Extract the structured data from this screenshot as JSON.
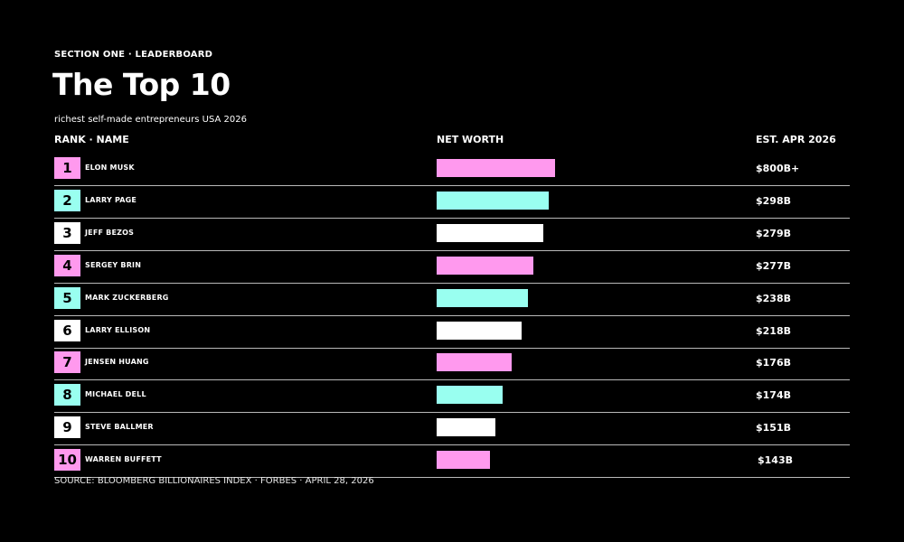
{
  "kicker": "SECTION ONE · LEADERBOARD",
  "title": "The Top 10",
  "subtitle": "richest self-made entrepreneurs USA 2026",
  "columns": {
    "rank_name": "RANK · NAME",
    "net_worth": "NET WORTH",
    "est": "EST. APR 2026"
  },
  "source": "SOURCE: BLOOMBERG BILLIONAIRES INDEX · FORBES · APRIL 28, 2026",
  "colors": {
    "background": "#000000",
    "pink": "#ff99ee",
    "cyan": "#99fff0",
    "white": "#ffffff",
    "divider": "#b9b9b9"
  },
  "chart_data": {
    "type": "bar",
    "title": "The Top 10",
    "subtitle": "richest self-made entrepreneurs USA 2026",
    "orientation": "horizontal",
    "categories": [
      "ELON MUSK",
      "LARRY PAGE",
      "JEFF BEZOS",
      "SERGEY BRIN",
      "MARK ZUCKERBERG",
      "LARRY ELLISON",
      "JENSEN HUANG",
      "MICHAEL DELL",
      "STEVE BALLMER",
      "WARREN BUFFETT"
    ],
    "ranks": [
      "1",
      "2",
      "3",
      "4",
      "5",
      "6",
      "7",
      "8",
      "9",
      "10"
    ],
    "labels": [
      "$800B+",
      "$298B",
      "$279B",
      "$277B",
      "$238B",
      "$218B",
      "$176B",
      "$174B",
      "$151B",
      "$143B"
    ],
    "values": [
      800,
      298,
      279,
      277,
      238,
      218,
      176,
      174,
      151,
      143
    ],
    "bar_lengths": [
      131,
      124,
      118,
      107,
      101,
      94,
      83,
      73,
      65,
      59
    ],
    "bar_colors": [
      "#ff99ee",
      "#99fff0",
      "#ffffff",
      "#ff99ee",
      "#99fff0",
      "#ffffff",
      "#ff99ee",
      "#99fff0",
      "#ffffff",
      "#ff99ee"
    ],
    "unit": "USD billions",
    "grid": false,
    "legend": "none"
  }
}
